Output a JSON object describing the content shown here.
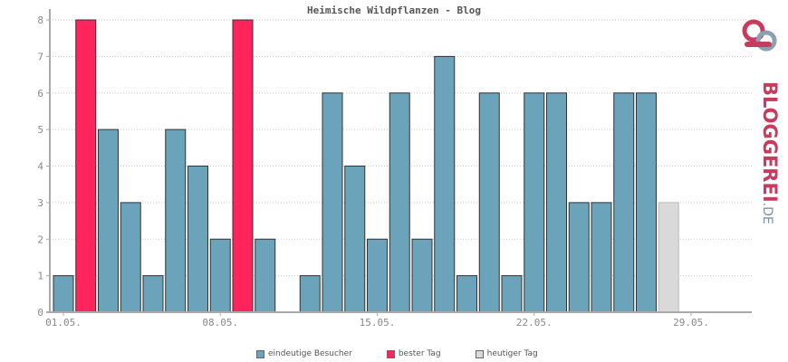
{
  "chart_data": {
    "type": "bar",
    "title": "Heimische Wildpflanzen - Blog",
    "xlabel": "",
    "ylabel": "",
    "ylim": [
      0,
      8
    ],
    "yticks": [
      0,
      1,
      2,
      3,
      4,
      5,
      6,
      7,
      8
    ],
    "x_tick_labels": [
      {
        "label": "01.05.",
        "day": 1
      },
      {
        "label": "08.05.",
        "day": 8
      },
      {
        "label": "15.05.",
        "day": 15
      },
      {
        "label": "22.05.",
        "day": 22
      },
      {
        "label": "29.05.",
        "day": 29
      }
    ],
    "days": [
      1,
      2,
      3,
      4,
      5,
      6,
      7,
      8,
      9,
      10,
      11,
      12,
      13,
      14,
      15,
      16,
      17,
      18,
      19,
      20,
      21,
      22,
      23,
      24,
      25,
      26,
      27,
      28,
      29,
      30,
      31
    ],
    "values": [
      1,
      8,
      5,
      3,
      1,
      5,
      4,
      2,
      8,
      2,
      0,
      1,
      6,
      4,
      2,
      6,
      2,
      7,
      1,
      6,
      1,
      6,
      6,
      3,
      3,
      6,
      6,
      3,
      0,
      0,
      0
    ],
    "kinds": [
      "normal",
      "best",
      "normal",
      "normal",
      "normal",
      "normal",
      "normal",
      "normal",
      "best",
      "normal",
      "normal",
      "normal",
      "normal",
      "normal",
      "normal",
      "normal",
      "normal",
      "normal",
      "normal",
      "normal",
      "normal",
      "normal",
      "normal",
      "normal",
      "normal",
      "normal",
      "normal",
      "today",
      "normal",
      "normal",
      "normal"
    ],
    "grid": true,
    "legend_position": "bottom",
    "legend": [
      {
        "label": "eindeutige Besucher",
        "kind": "normal"
      },
      {
        "label": "bester Tag",
        "kind": "best"
      },
      {
        "label": "heutiger Tag",
        "kind": "today"
      }
    ]
  },
  "colors": {
    "normal": "#6ba3bb",
    "best": "#ff245b",
    "today": "#d9d9d9",
    "bar_stroke": "#333333",
    "axis": "#aaaaaa",
    "grid": "#c8c8c8",
    "text": "#888888",
    "title": "#555555"
  },
  "logo": {
    "main": "BLOGGEREI",
    "tld": ".DE"
  }
}
